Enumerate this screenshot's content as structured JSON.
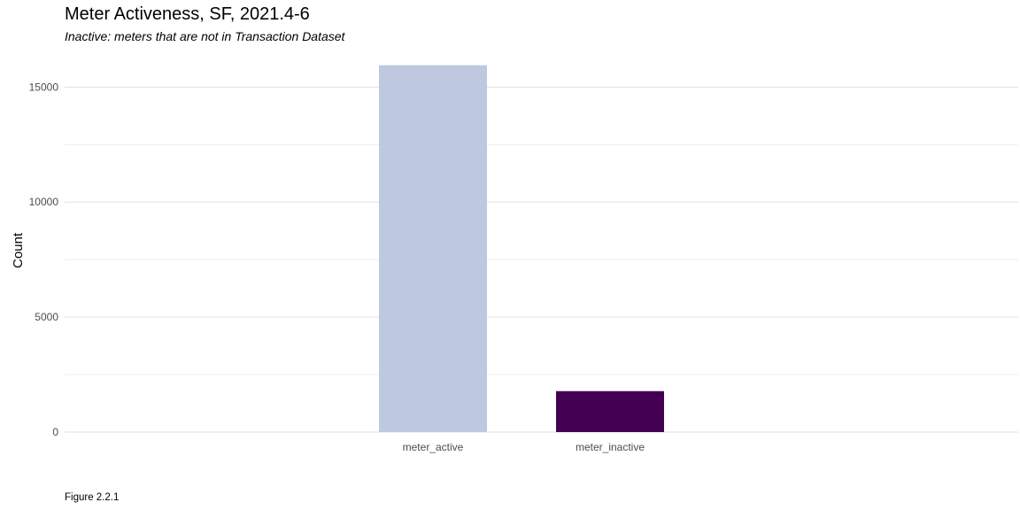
{
  "figure": {
    "caption": "Figure 2.2.1"
  },
  "chart_data": {
    "type": "bar",
    "title": "Meter Activeness, SF, 2021.4-6",
    "subtitle": "Inactive: meters that are not in Transaction Dataset",
    "xlabel": "",
    "ylabel": "Count",
    "categories": [
      "meter_active",
      "meter_inactive"
    ],
    "values": [
      15950,
      1780
    ],
    "colors": [
      "#bec8df",
      "#440154"
    ],
    "ylim": [
      0,
      16400
    ],
    "yticks": [
      0,
      5000,
      10000,
      15000
    ],
    "grid": true,
    "legend": "none"
  }
}
